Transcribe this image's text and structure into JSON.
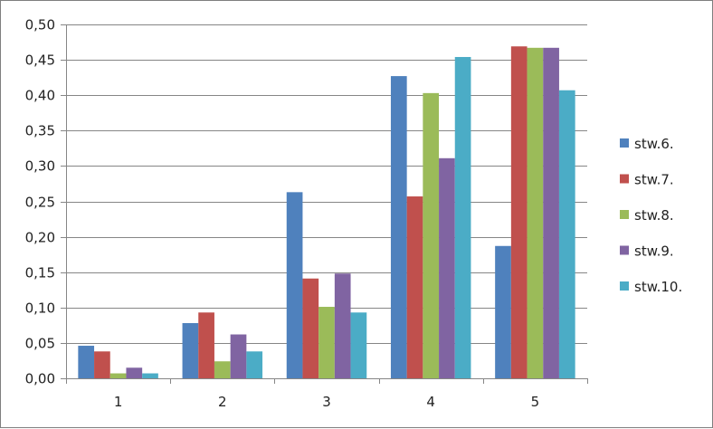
{
  "chart_data": {
    "type": "bar",
    "title": "",
    "xlabel": "",
    "ylabel": "",
    "categories": [
      "1",
      "2",
      "3",
      "4",
      "5"
    ],
    "ylim": [
      0,
      0.5
    ],
    "ytick_step": 0.05,
    "ytick_labels": [
      "0,00",
      "0,05",
      "0,10",
      "0,15",
      "0,20",
      "0,25",
      "0,30",
      "0,35",
      "0,40",
      "0,45",
      "0,50"
    ],
    "grid": "horizontal",
    "legend_position": "right",
    "series": [
      {
        "name": "stw.6.",
        "color": "#4f81bd",
        "values": [
          0.046,
          0.078,
          0.263,
          0.427,
          0.187
        ]
      },
      {
        "name": "stw.7.",
        "color": "#c0504d",
        "values": [
          0.038,
          0.093,
          0.141,
          0.257,
          0.469
        ]
      },
      {
        "name": "stw.8.",
        "color": "#9bbb59",
        "values": [
          0.007,
          0.024,
          0.101,
          0.403,
          0.467
        ]
      },
      {
        "name": "stw.9.",
        "color": "#8064a2",
        "values": [
          0.015,
          0.062,
          0.148,
          0.311,
          0.467
        ]
      },
      {
        "name": "stw.10.",
        "color": "#4bacc6",
        "values": [
          0.007,
          0.038,
          0.093,
          0.454,
          0.407
        ]
      }
    ]
  }
}
